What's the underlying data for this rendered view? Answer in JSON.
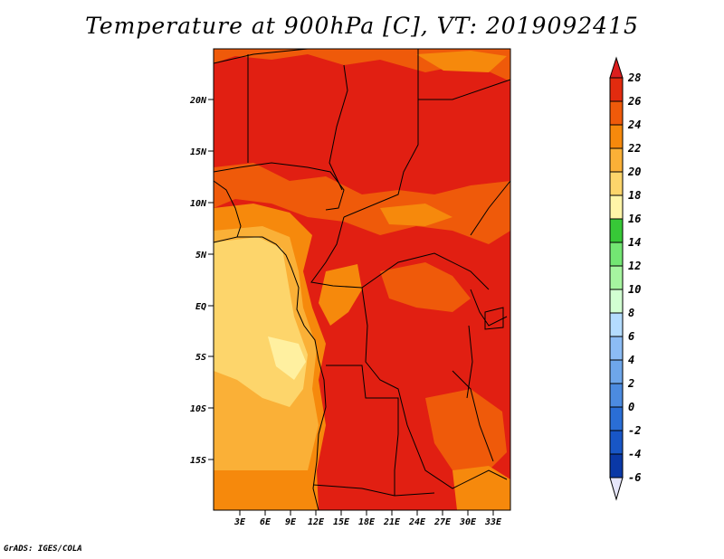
{
  "title": "Temperature at 900hPa [C], VT: 2019092415",
  "footer": "GrADS: IGES/COLA",
  "map": {
    "lon_range": [
      0,
      35
    ],
    "lat_range": [
      -20,
      25
    ],
    "lon_ticks": [
      "3E",
      "6E",
      "9E",
      "12E",
      "15E",
      "18E",
      "21E",
      "24E",
      "27E",
      "30E",
      "33E"
    ],
    "lat_ticks": [
      "20N",
      "15N",
      "10N",
      "5N",
      "EQ",
      "5S",
      "10S",
      "15S"
    ]
  },
  "colorbar": {
    "levels": [
      "28",
      "26",
      "24",
      "22",
      "20",
      "18",
      "16",
      "14",
      "12",
      "10",
      "8",
      "6",
      "4",
      "2",
      "0",
      "-2",
      "-4",
      "-6"
    ],
    "colors": {
      "above_28": "#dc1e1e",
      "26_28": "#e22b0f",
      "24_26": "#ef5a0a",
      "22_24": "#f6890c",
      "20_22": "#fab037",
      "18_20": "#fdd56b",
      "16_18": "#fff5a8",
      "14_16": "#37c837",
      "12_14": "#73e673",
      "10_12": "#a6f5a0",
      "8_10": "#d2ffd2",
      "6_8": "#b4dcff",
      "4_6": "#8cbcf5",
      "2_4": "#6ea6ea",
      "0_2": "#4c8be0",
      "m2_0": "#2a6ed6",
      "m4_m2": "#1856c6",
      "m6_m4": "#0a38a6",
      "below_m6": "#e6e6fa"
    }
  }
}
